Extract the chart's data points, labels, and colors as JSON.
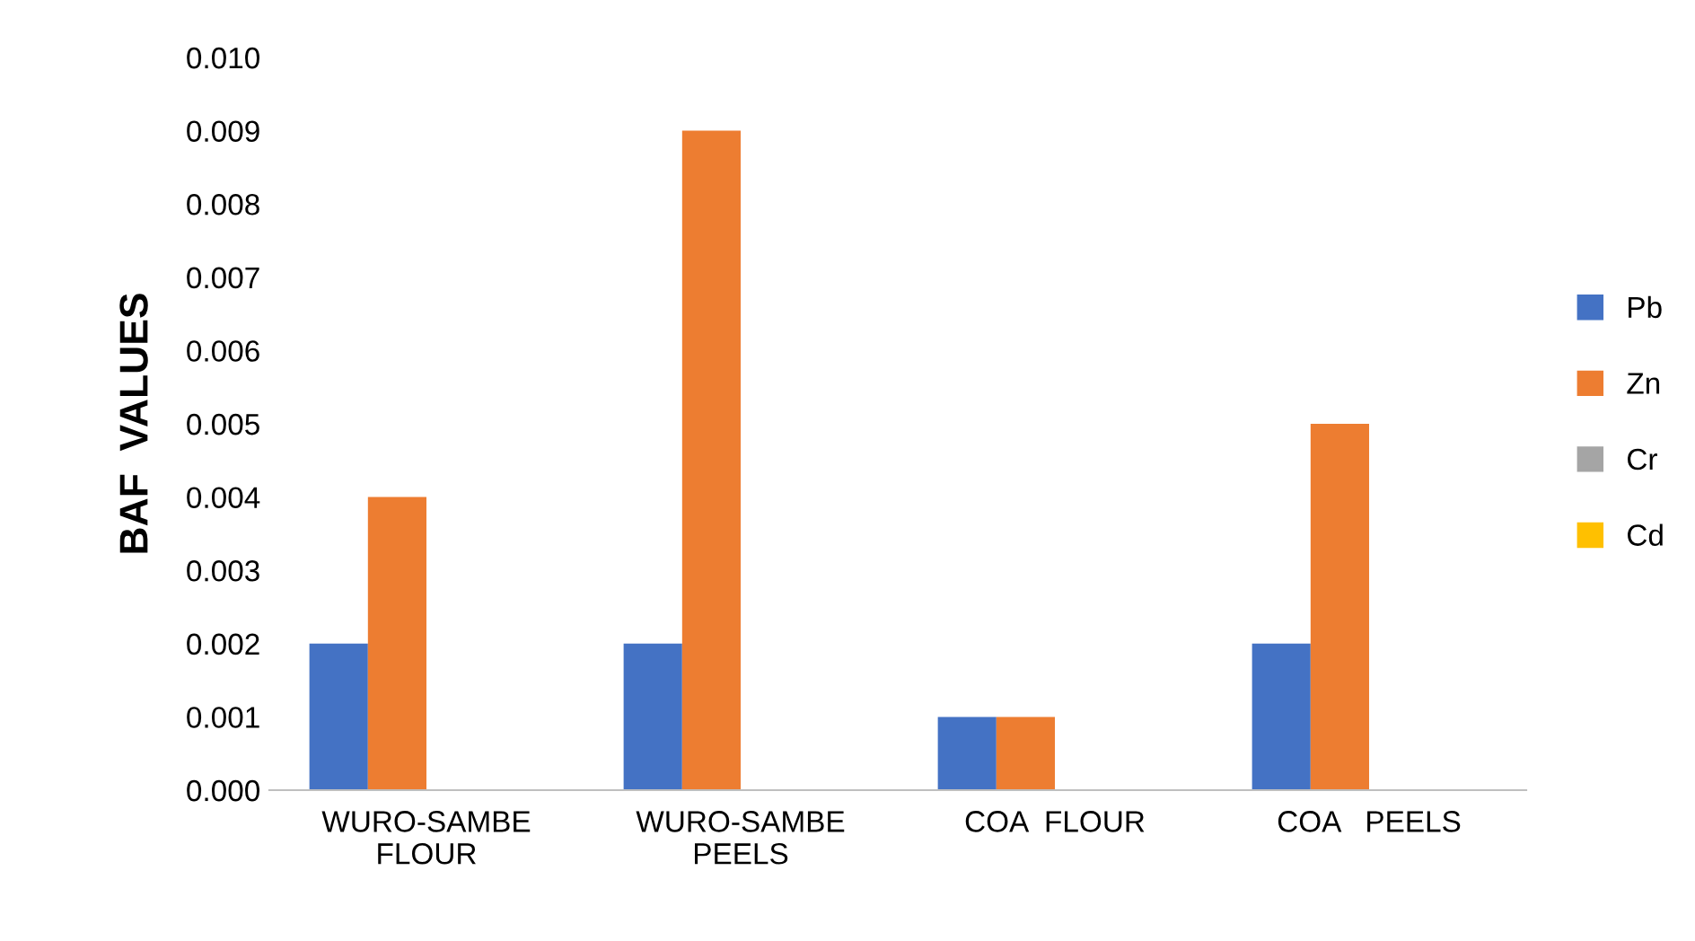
{
  "chart_data": {
    "type": "bar",
    "ylabel": "BAF  VALUES",
    "categories": [
      "WURO-SAMBE\nFLOUR",
      "WURO-SAMBE\nPEELS",
      "COA  FLOUR",
      "COA   PEELS"
    ],
    "series": [
      {
        "name": "Pb",
        "color": "#4472c4",
        "values": [
          0.002,
          0.002,
          0.001,
          0.002
        ]
      },
      {
        "name": "Zn",
        "color": "#ed7d31",
        "values": [
          0.004,
          0.009,
          0.001,
          0.005
        ]
      },
      {
        "name": "Cr",
        "color": "#a5a5a5",
        "values": [
          0,
          0,
          0,
          0
        ]
      },
      {
        "name": "Cd",
        "color": "#ffc000",
        "values": [
          0,
          0,
          0,
          0
        ]
      }
    ],
    "ylim": [
      0,
      0.01
    ],
    "yticks": [
      {
        "value": 0,
        "label": "0.000"
      },
      {
        "value": 0.001,
        "label": "0.001"
      },
      {
        "value": 0.002,
        "label": "0.002"
      },
      {
        "value": 0.003,
        "label": "0.003"
      },
      {
        "value": 0.004,
        "label": "0.004"
      },
      {
        "value": 0.005,
        "label": "0.005"
      },
      {
        "value": 0.006,
        "label": "0.006"
      },
      {
        "value": 0.007,
        "label": "0.007"
      },
      {
        "value": 0.008,
        "label": "0.008"
      },
      {
        "value": 0.009,
        "label": "0.009"
      },
      {
        "value": 0.01,
        "label": "0.010"
      }
    ],
    "grid": false,
    "legend": "right"
  }
}
